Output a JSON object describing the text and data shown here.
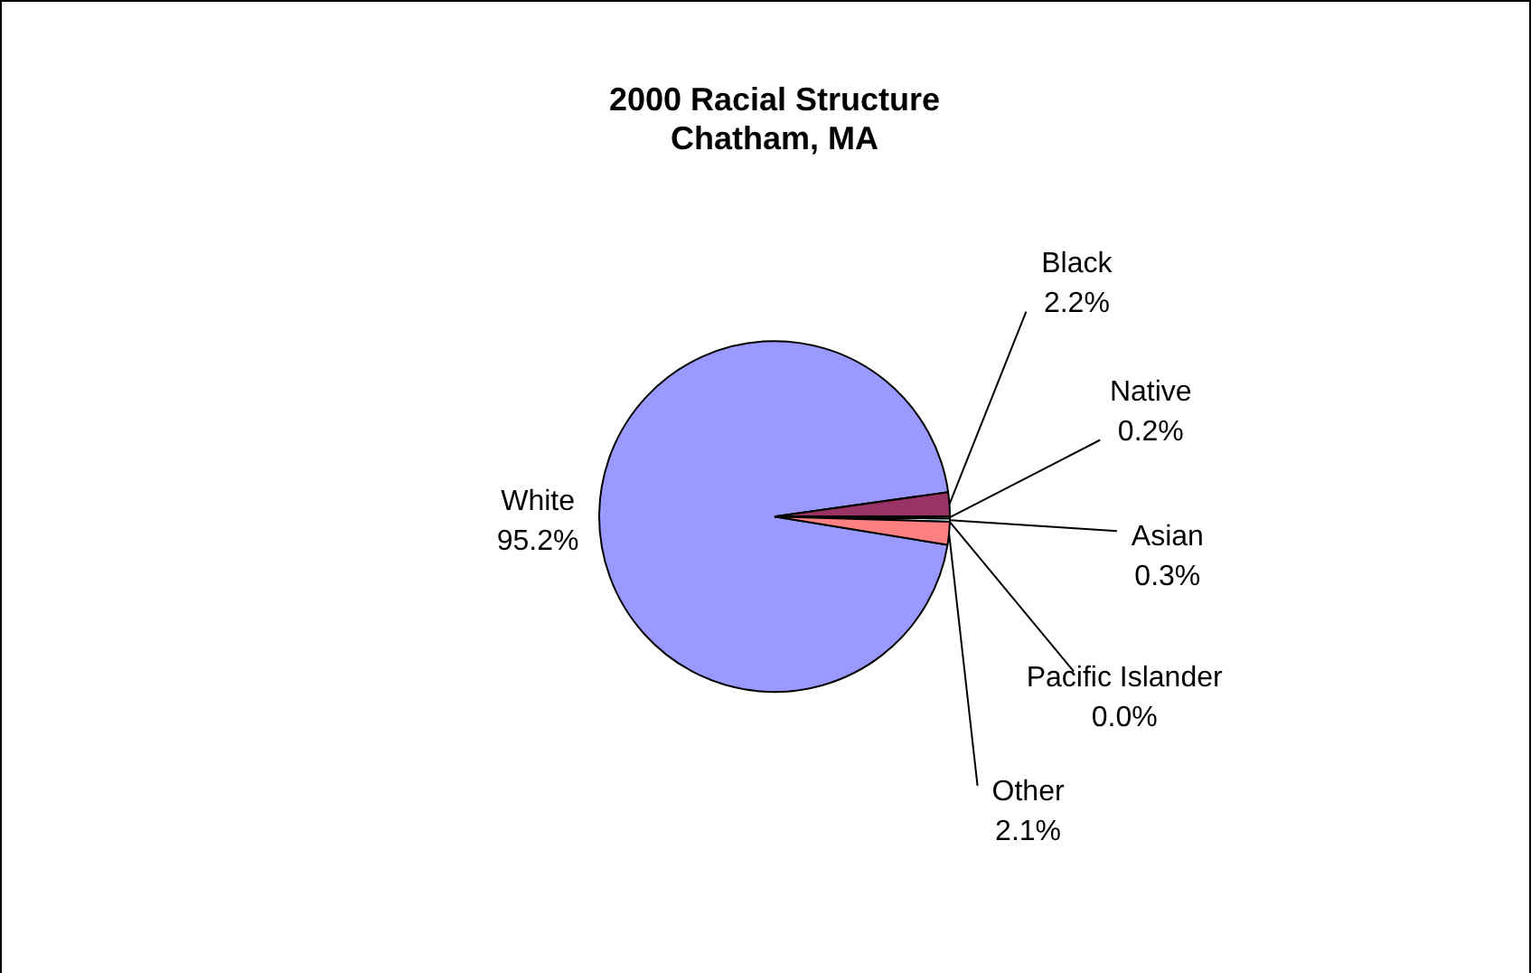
{
  "chart_data": {
    "type": "pie",
    "title": "2000 Racial Structure\nChatham, MA",
    "categories": [
      "White",
      "Black",
      "Native",
      "Asian",
      "Pacific Islander",
      "Other"
    ],
    "values": [
      95.2,
      2.2,
      0.2,
      0.3,
      0.0,
      2.1
    ],
    "value_labels": [
      "95.2%",
      "2.2%",
      "0.2%",
      "0.3%",
      "0.0%",
      "2.1%"
    ],
    "colors": [
      "#9999ff",
      "#993366",
      "#ffffcc",
      "#ccffff",
      "#660066",
      "#ff8080"
    ],
    "legend": false
  }
}
